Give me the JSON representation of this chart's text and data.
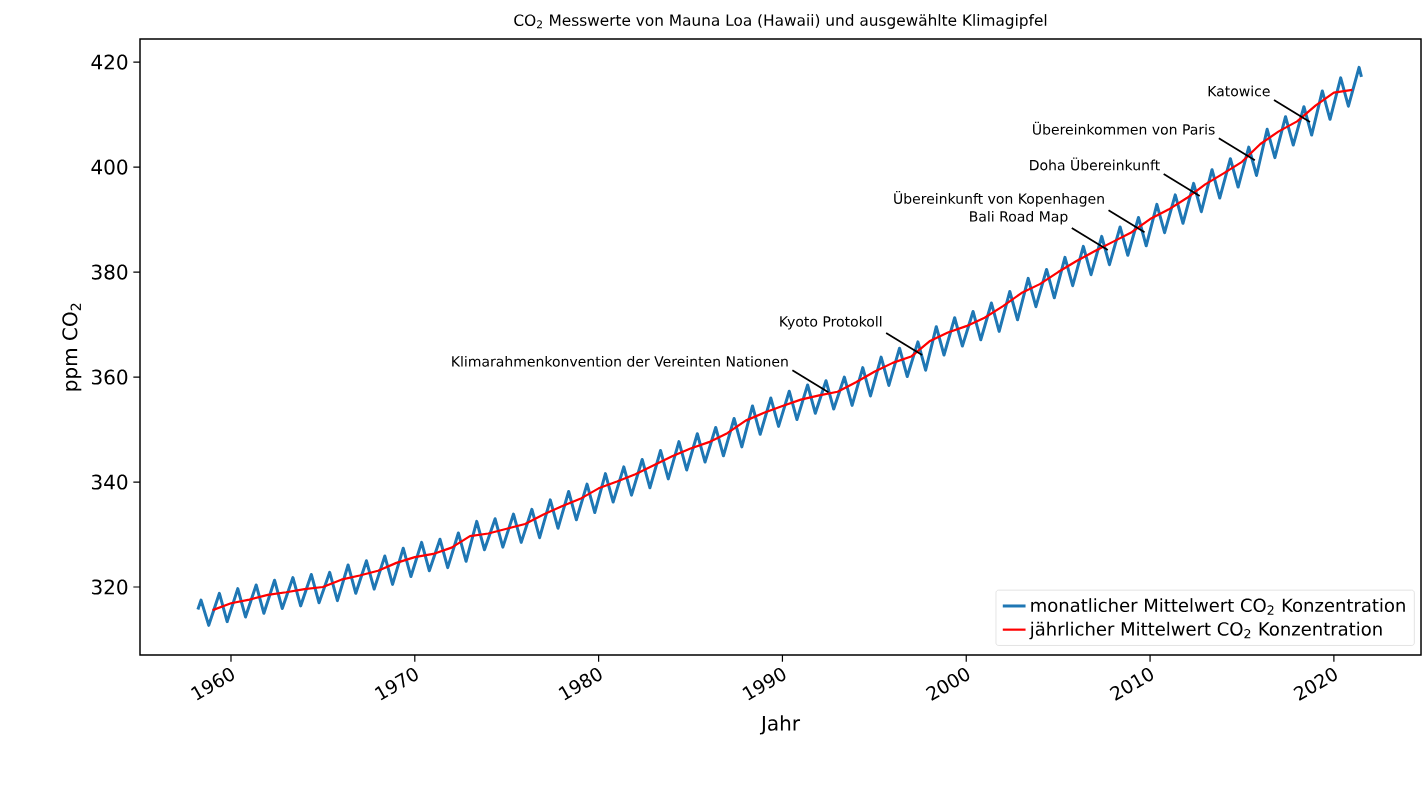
{
  "chart_data": {
    "type": "line",
    "title": "CO$_{2}$ Messwerte von Mauna Loa (Hawaii) und ausgewählte Klimagipfel",
    "xlabel": "Jahr",
    "ylabel": "ppm CO$_{2}$",
    "xlim": [
      1955.05,
      2024.74
    ],
    "ylim": [
      307.05,
      424.4
    ],
    "xticks": [
      1960,
      1970,
      1980,
      1990,
      2000,
      2010,
      2020
    ],
    "yticks": [
      320,
      340,
      360,
      380,
      400,
      420
    ],
    "legend": "bottom right",
    "grid": false,
    "series": [
      {
        "name": "monatlicher Mittelwert CO$_{2}$ Konzentration",
        "color": "#1f77b4",
        "x": [
          1958.2,
          1958.37,
          1958.79,
          1959.37,
          1959.79,
          1960.37,
          1960.79,
          1961.37,
          1961.79,
          1962.37,
          1962.79,
          1963.37,
          1963.79,
          1964.37,
          1964.79,
          1965.37,
          1965.79,
          1966.37,
          1966.79,
          1967.37,
          1967.79,
          1968.37,
          1968.79,
          1969.37,
          1969.79,
          1970.37,
          1970.79,
          1971.37,
          1971.79,
          1972.37,
          1972.79,
          1973.37,
          1973.79,
          1974.37,
          1974.79,
          1975.37,
          1975.79,
          1976.37,
          1976.79,
          1977.37,
          1977.79,
          1978.37,
          1978.79,
          1979.37,
          1979.79,
          1980.37,
          1980.79,
          1981.37,
          1981.79,
          1982.37,
          1982.79,
          1983.37,
          1983.79,
          1984.37,
          1984.79,
          1985.37,
          1985.79,
          1986.37,
          1986.79,
          1987.37,
          1987.79,
          1988.37,
          1988.79,
          1989.37,
          1989.79,
          1990.37,
          1990.79,
          1991.37,
          1991.79,
          1992.37,
          1992.79,
          1993.37,
          1993.79,
          1994.37,
          1994.79,
          1995.37,
          1995.79,
          1996.37,
          1996.79,
          1997.37,
          1997.79,
          1998.37,
          1998.79,
          1999.37,
          1999.79,
          2000.37,
          2000.79,
          2001.37,
          2001.79,
          2002.37,
          2002.79,
          2003.37,
          2003.79,
          2004.37,
          2004.79,
          2005.37,
          2005.79,
          2006.37,
          2006.79,
          2007.37,
          2007.79,
          2008.37,
          2008.79,
          2009.37,
          2009.79,
          2010.37,
          2010.79,
          2011.37,
          2011.79,
          2012.37,
          2012.79,
          2013.37,
          2013.79,
          2014.37,
          2014.79,
          2015.37,
          2015.79,
          2016.37,
          2016.79,
          2017.37,
          2017.79,
          2018.37,
          2018.79,
          2019.37,
          2019.79,
          2020.37,
          2020.79,
          2021.37,
          2021.5
        ],
        "values": [
          315.7,
          317.5,
          312.7,
          318.8,
          313.4,
          319.7,
          314.3,
          320.4,
          315.0,
          321.3,
          315.9,
          321.8,
          316.4,
          322.4,
          317.0,
          322.8,
          317.4,
          324.2,
          318.8,
          325.0,
          319.6,
          325.9,
          320.5,
          327.4,
          322.0,
          328.5,
          323.1,
          329.1,
          323.7,
          330.3,
          324.9,
          332.5,
          327.1,
          333.0,
          327.6,
          333.9,
          328.5,
          334.8,
          329.4,
          336.6,
          331.2,
          338.2,
          332.8,
          339.6,
          334.2,
          341.6,
          336.2,
          342.9,
          337.5,
          344.3,
          338.9,
          346.0,
          340.6,
          347.7,
          342.3,
          349.2,
          343.8,
          350.4,
          345.0,
          352.1,
          346.7,
          354.5,
          349.1,
          356.0,
          350.6,
          357.3,
          351.9,
          358.5,
          353.1,
          359.3,
          353.9,
          360.0,
          354.6,
          361.8,
          356.4,
          363.8,
          358.4,
          365.5,
          360.1,
          366.7,
          361.3,
          369.6,
          364.2,
          371.3,
          365.9,
          372.5,
          367.1,
          374.1,
          368.7,
          376.3,
          370.9,
          378.8,
          373.4,
          380.5,
          375.1,
          382.8,
          377.4,
          384.9,
          379.5,
          386.8,
          381.4,
          388.6,
          383.2,
          390.4,
          385.0,
          392.9,
          387.5,
          394.7,
          389.3,
          396.9,
          391.5,
          399.5,
          394.1,
          401.6,
          396.2,
          403.8,
          398.4,
          407.2,
          401.8,
          409.6,
          404.2,
          411.5,
          406.1,
          414.5,
          409.1,
          417.0,
          411.6,
          419.0,
          417.2
        ]
      },
      {
        "name": "jährlicher Mittelwert CO$_{2}$ Konzentration",
        "color": "#ff0000",
        "x": [
          1959,
          1960,
          1961,
          1962,
          1963,
          1964,
          1965,
          1966,
          1967,
          1968,
          1969,
          1970,
          1971,
          1972,
          1973,
          1974,
          1975,
          1976,
          1977,
          1978,
          1979,
          1980,
          1981,
          1982,
          1983,
          1984,
          1985,
          1986,
          1987,
          1988,
          1989,
          1990,
          1991,
          1992,
          1993,
          1994,
          1995,
          1996,
          1997,
          1998,
          1999,
          2000,
          2001,
          2002,
          2003,
          2004,
          2005,
          2006,
          2007,
          2008,
          2009,
          2010,
          2011,
          2012,
          2013,
          2014,
          2015,
          2016,
          2017,
          2018,
          2019,
          2020,
          2021
        ],
        "values": [
          315.6,
          316.9,
          317.6,
          318.5,
          319.0,
          319.6,
          320.0,
          321.4,
          322.2,
          323.1,
          324.6,
          325.7,
          326.3,
          327.5,
          329.7,
          330.2,
          331.1,
          332.0,
          333.8,
          335.4,
          336.8,
          338.8,
          340.1,
          341.5,
          343.2,
          344.9,
          346.4,
          347.6,
          349.3,
          351.7,
          353.2,
          354.5,
          355.7,
          356.5,
          357.2,
          359.0,
          361.0,
          362.7,
          363.9,
          366.8,
          368.5,
          369.7,
          371.3,
          373.5,
          376.0,
          377.7,
          380.0,
          382.1,
          384.0,
          385.8,
          387.6,
          390.1,
          391.9,
          394.1,
          396.7,
          398.8,
          401.0,
          404.4,
          406.8,
          408.7,
          411.7,
          414.2,
          414.7
        ]
      }
    ],
    "annotations": [
      {
        "text": "Klimarahmenkonvention der Vereinten Nationen",
        "x": 1992.5,
        "y": 357.1
      },
      {
        "text": "Kyoto Protokoll",
        "x": 1997.6,
        "y": 364.2
      },
      {
        "text": "Bali Road Map",
        "x": 2007.7,
        "y": 384.2
      },
      {
        "text": "Übereinkunft von Kopenhagen",
        "x": 2009.7,
        "y": 387.6
      },
      {
        "text": "Doha Übereinkunft",
        "x": 2012.7,
        "y": 394.5
      },
      {
        "text": "Übereinkommen von Paris",
        "x": 2015.7,
        "y": 401.3
      },
      {
        "text": "Katowice",
        "x": 2018.7,
        "y": 408.6
      }
    ]
  }
}
